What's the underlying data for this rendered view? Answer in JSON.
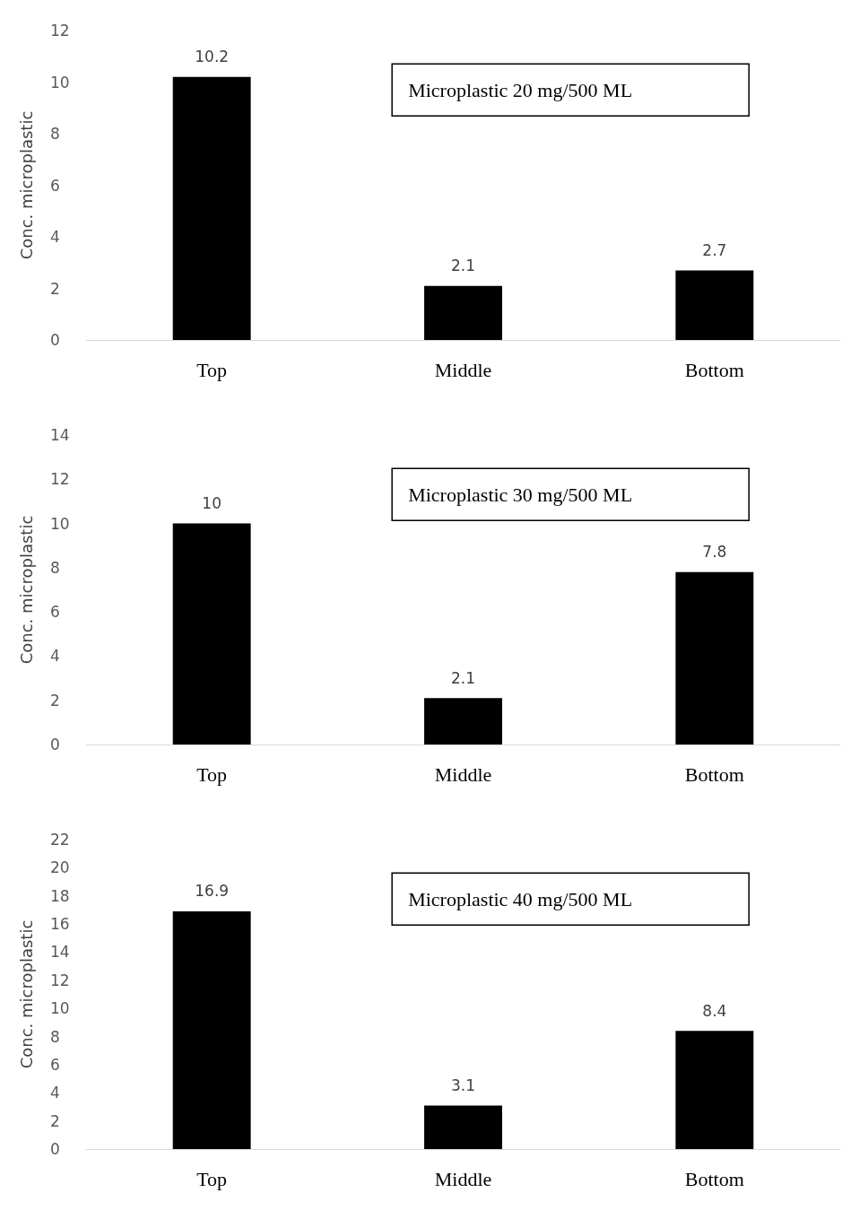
{
  "chart_data": [
    {
      "type": "bar",
      "title": "Microplastic 20 mg/500 ML",
      "ylabel": "Conc. microplastic",
      "categories": [
        "Top",
        "Middle",
        "Bottom"
      ],
      "values": [
        10.2,
        2.1,
        2.7
      ],
      "color": "#000000",
      "ylim": [
        0,
        12
      ],
      "yticks": [
        0,
        2,
        4,
        6,
        8,
        10,
        12
      ],
      "data_labels": true,
      "grid": false
    },
    {
      "type": "bar",
      "title": "Microplastic 30 mg/500 ML",
      "ylabel": "Conc. microplastic",
      "categories": [
        "Top",
        "Middle",
        "Bottom"
      ],
      "values": [
        10,
        2.1,
        7.8
      ],
      "color": "#000000",
      "ylim": [
        0,
        14
      ],
      "yticks": [
        0,
        2,
        4,
        6,
        8,
        10,
        12,
        14
      ],
      "data_labels": true,
      "grid": false
    },
    {
      "type": "bar",
      "title": "Microplastic 40 mg/500 ML",
      "ylabel": "Conc. microplastic",
      "categories": [
        "Top",
        "Middle",
        "Bottom"
      ],
      "values": [
        16.9,
        3.1,
        8.4
      ],
      "color": "#000000",
      "ylim": [
        0,
        22
      ],
      "yticks": [
        0,
        2,
        4,
        6,
        8,
        10,
        12,
        14,
        16,
        18,
        20,
        22
      ],
      "data_labels": true,
      "grid": false
    }
  ]
}
